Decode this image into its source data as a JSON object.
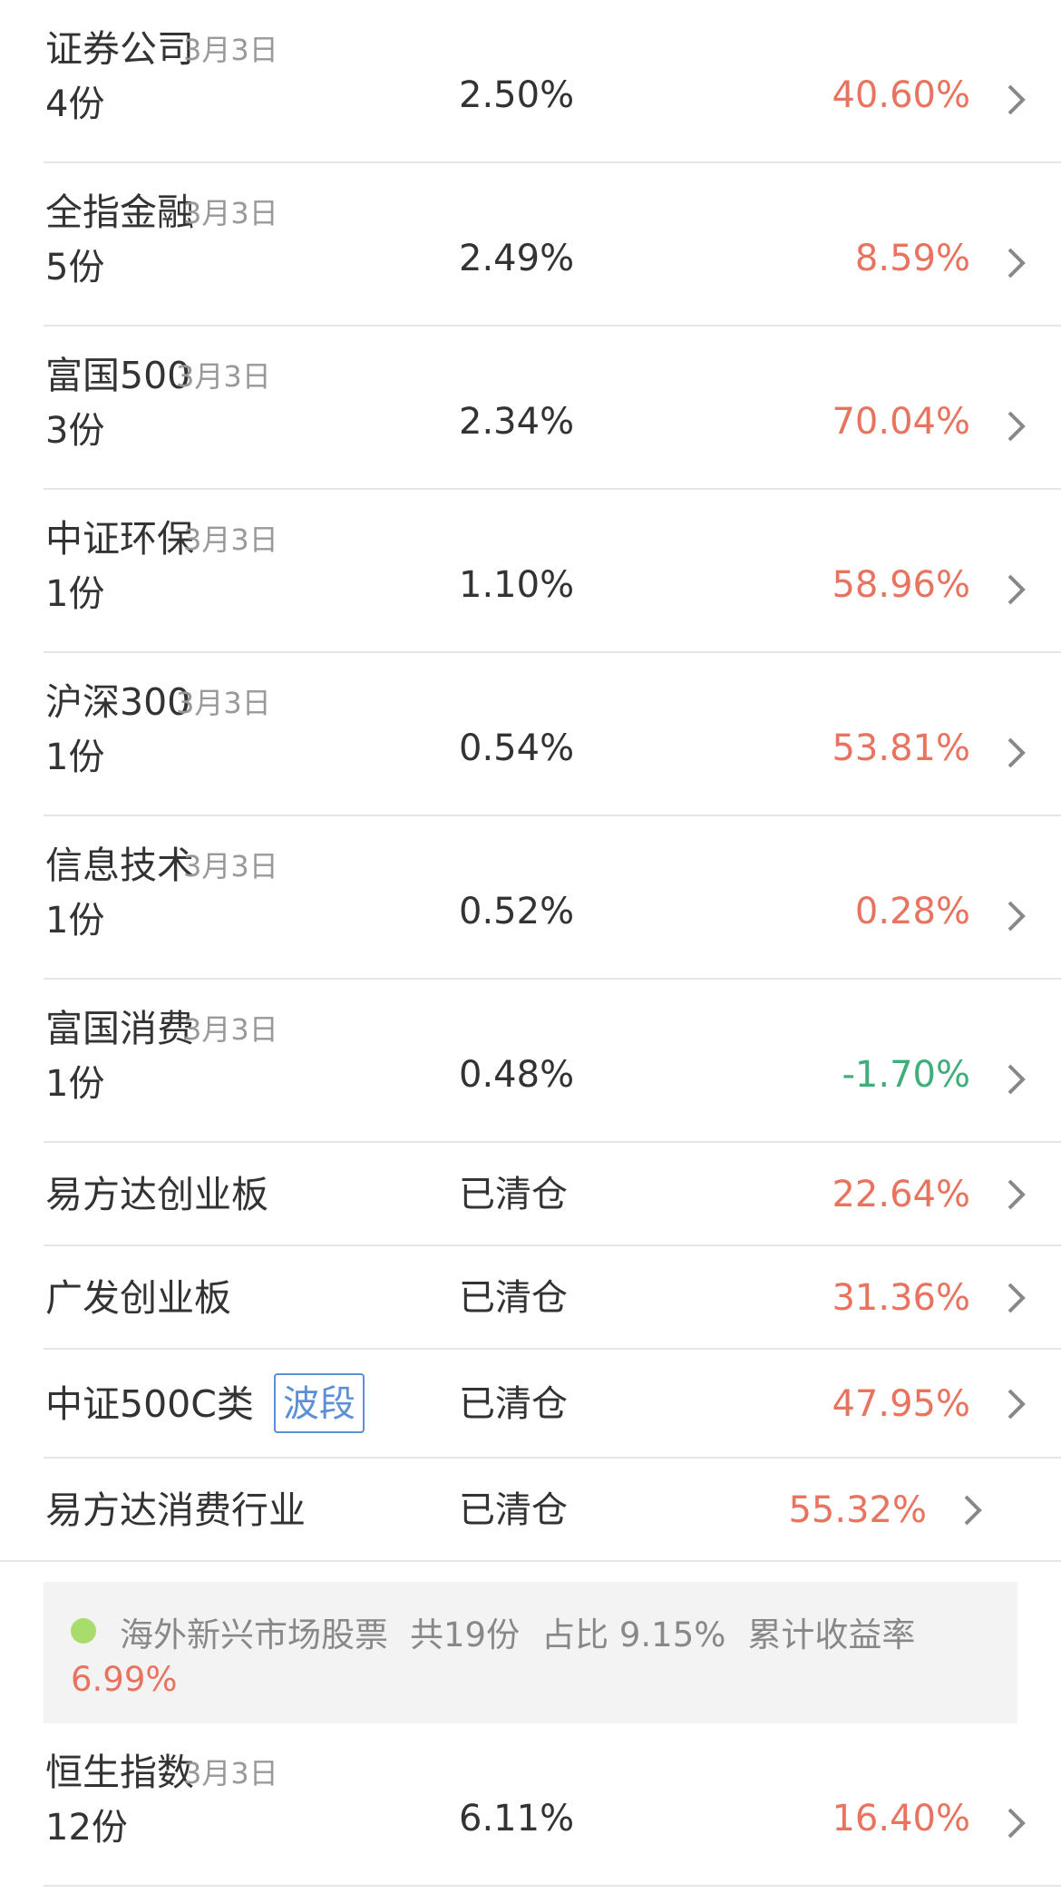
{
  "holdings": [
    {
      "name": "证券公司",
      "date": "3月3日",
      "shares": "4份",
      "weight": "2.50%",
      "return": "40.60%",
      "trend": "up"
    },
    {
      "name": "全指金融",
      "date": "3月3日",
      "shares": "5份",
      "weight": "2.49%",
      "return": "8.59%",
      "trend": "up"
    },
    {
      "name": "富国500",
      "date": "3月3日",
      "shares": "3份",
      "weight": "2.34%",
      "return": "70.04%",
      "trend": "up"
    },
    {
      "name": "中证环保",
      "date": "3月3日",
      "shares": "1份",
      "weight": "1.10%",
      "return": "58.96%",
      "trend": "up"
    },
    {
      "name": "沪深300",
      "date": "3月3日",
      "shares": "1份",
      "weight": "0.54%",
      "return": "53.81%",
      "trend": "up"
    },
    {
      "name": "信息技术",
      "date": "3月3日",
      "shares": "1份",
      "weight": "0.52%",
      "return": "0.28%",
      "trend": "up"
    },
    {
      "name": "富国消费",
      "date": "3月3日",
      "shares": "1份",
      "weight": "0.48%",
      "return": "-1.70%",
      "trend": "down"
    }
  ],
  "cleared": [
    {
      "name": "易方达创业板",
      "status": "已清仓",
      "return": "22.64%"
    },
    {
      "name": "广发创业板",
      "status": "已清仓",
      "return": "31.36%"
    },
    {
      "name": "中证500C类",
      "tag": "波段",
      "status": "已清仓",
      "return": "47.95%"
    },
    {
      "name": "易方达消费行业",
      "status": "已清仓",
      "return": "55.32%"
    }
  ],
  "section": {
    "title": "海外新兴市场股票",
    "count": "共19份",
    "ratio": "占比 9.15%",
    "return_label": "累计收益率",
    "return_value": "6.99%"
  },
  "overseas": [
    {
      "name": "恒生指数",
      "date": "3月3日",
      "shares": "12份",
      "weight": "6.11%",
      "return": "16.40%"
    }
  ],
  "colors": {
    "positive": "#e8735f",
    "negative": "#3fae7a",
    "tag": "#5b8fd6",
    "dot": "#a8dc6c"
  }
}
